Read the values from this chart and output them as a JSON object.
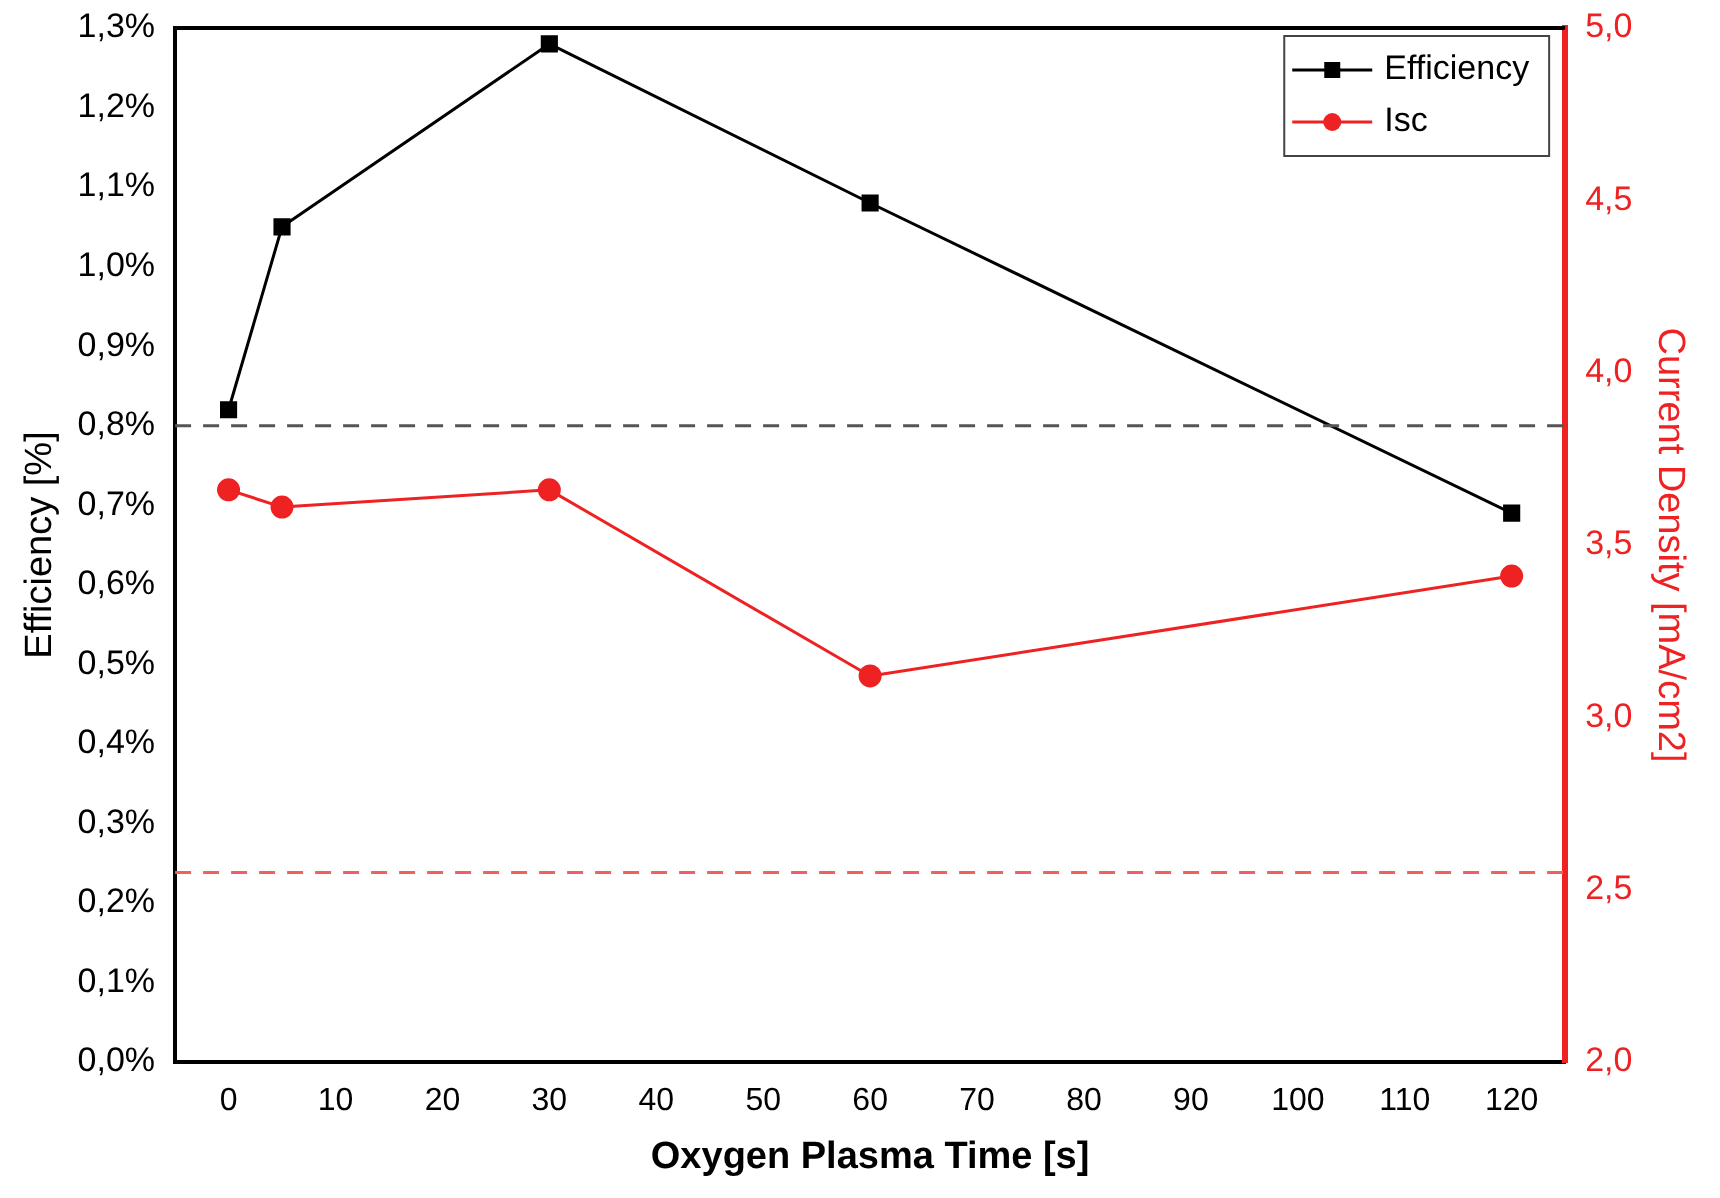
{
  "chart_data": {
    "type": "line",
    "xlabel": "Oxygen Plasma Time [s]",
    "ylabel": "Efficiency [%]",
    "y2label": "Current Density [mA/cm2]",
    "xlim": [
      -5,
      125
    ],
    "xticks": [
      0,
      10,
      20,
      30,
      40,
      50,
      60,
      70,
      80,
      90,
      100,
      110,
      120
    ],
    "ylim": [
      0,
      1.3
    ],
    "yticks": [
      {
        "value": 0,
        "label": "0,0%"
      },
      {
        "value": 0.1,
        "label": "0,1%"
      },
      {
        "value": 0.2,
        "label": "0,2%"
      },
      {
        "value": 0.3,
        "label": "0,3%"
      },
      {
        "value": 0.4,
        "label": "0,4%"
      },
      {
        "value": 0.5,
        "label": "0,5%"
      },
      {
        "value": 0.6,
        "label": "0,6%"
      },
      {
        "value": 0.7,
        "label": "0,7%"
      },
      {
        "value": 0.8,
        "label": "0,8%"
      },
      {
        "value": 0.9,
        "label": "0,9%"
      },
      {
        "value": 1.0,
        "label": "1,0%"
      },
      {
        "value": 1.1,
        "label": "1,1%"
      },
      {
        "value": 1.2,
        "label": "1,2%"
      },
      {
        "value": 1.3,
        "label": "1,3%"
      }
    ],
    "y2lim": [
      2,
      5
    ],
    "y2ticks": [
      {
        "value": 2,
        "label": "2,0"
      },
      {
        "value": 2.5,
        "label": "2,5"
      },
      {
        "value": 3,
        "label": "3,0"
      },
      {
        "value": 3.5,
        "label": "3,5"
      },
      {
        "value": 4,
        "label": "4,0"
      },
      {
        "value": 4.5,
        "label": "4,5"
      },
      {
        "value": 5,
        "label": "5,0"
      }
    ],
    "x": [
      0,
      5,
      30,
      60,
      120
    ],
    "series": [
      {
        "name": "Efficiency",
        "color": "#000000",
        "marker": "square",
        "values": [
          0.82,
          1.05,
          1.28,
          1.08,
          0.69
        ]
      },
      {
        "name": "Isc",
        "color": "#ee2222",
        "marker": "circle",
        "axis": "y2",
        "values": [
          3.66,
          3.61,
          3.66,
          3.12,
          3.41
        ]
      }
    ],
    "ref_lines": [
      {
        "axis": "y",
        "value": 0.8,
        "color": "#555555",
        "line_style": "dashed"
      },
      {
        "axis": "y2",
        "value": 2.55,
        "color": "#f06060",
        "line_style": "dashed"
      }
    ],
    "grid": false,
    "legend": "top right"
  }
}
